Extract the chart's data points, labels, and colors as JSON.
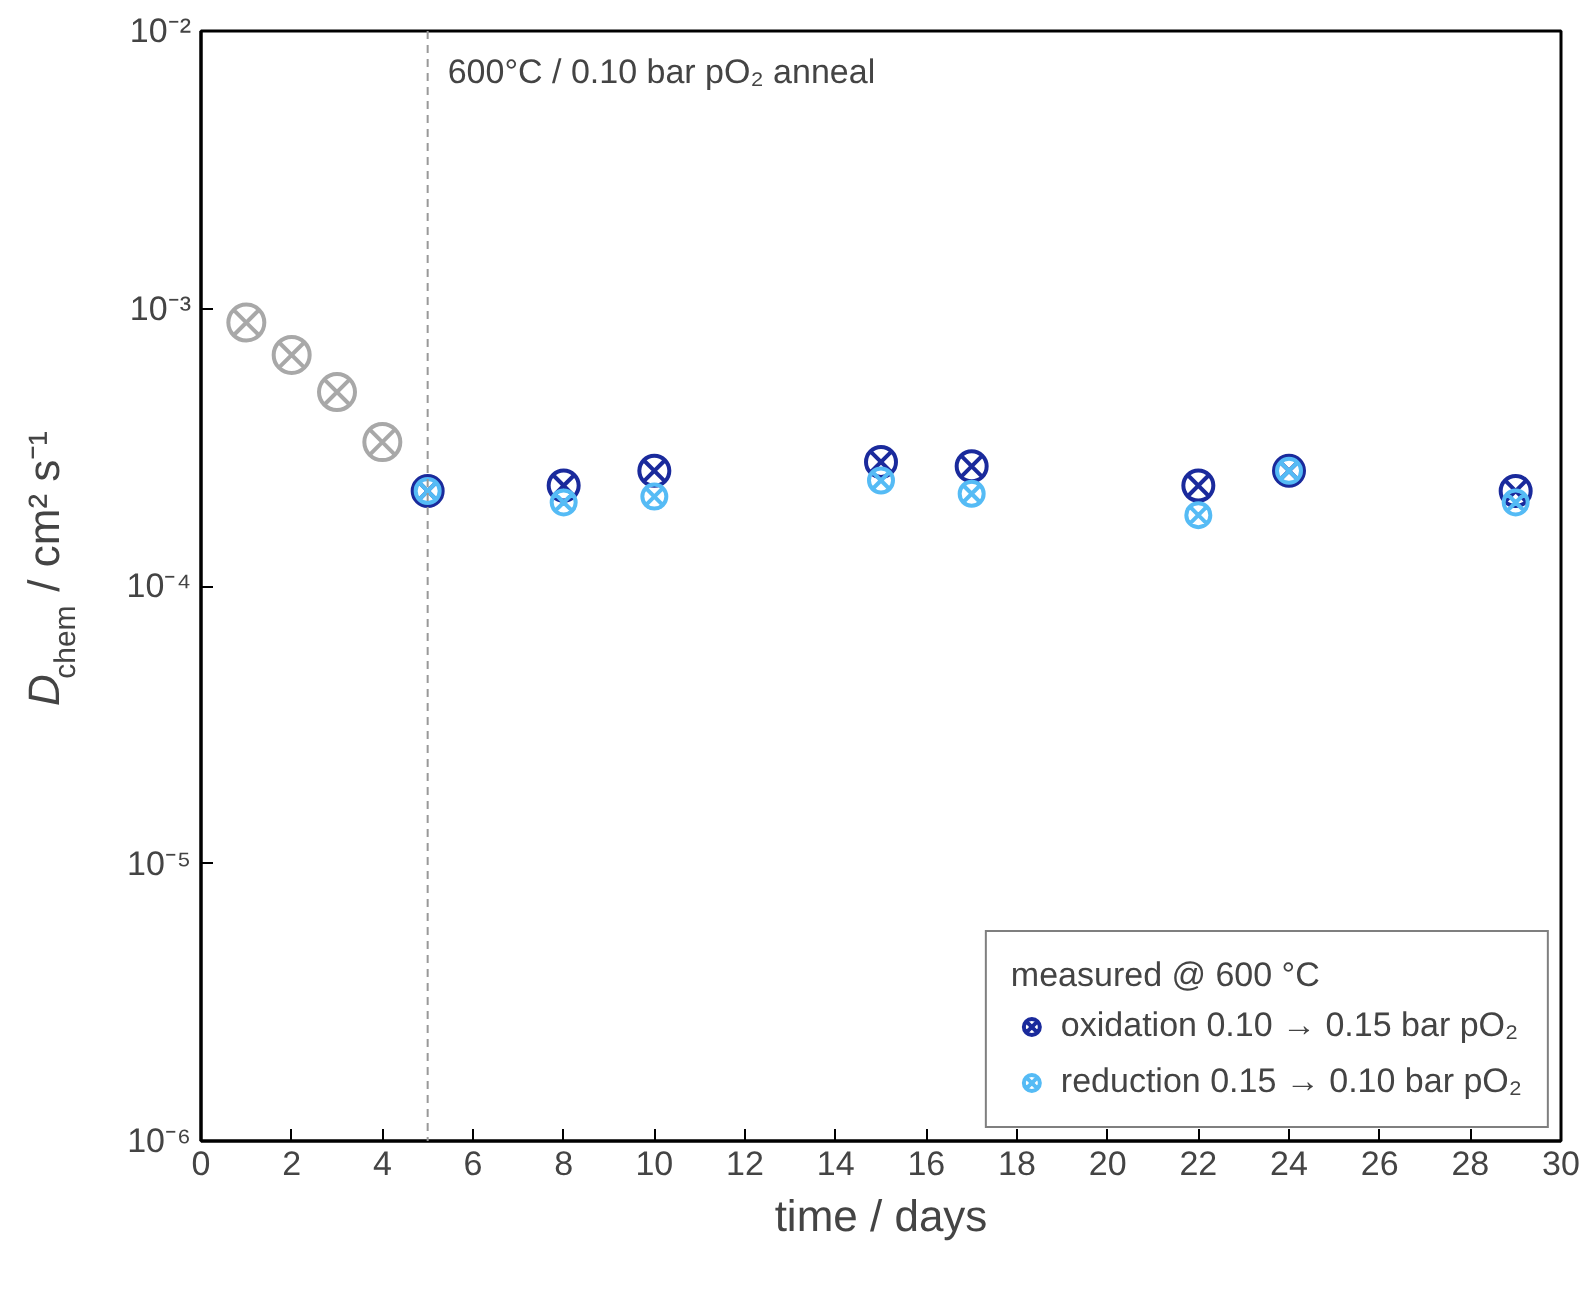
{
  "chart_data": {
    "type": "scatter",
    "xlabel": "time / days",
    "ylabel": "D$_{chem}$ / cm² s⁻¹",
    "series": [
      {
        "color": "#a8a8a8",
        "x": [
          1,
          2,
          3,
          4
        ],
        "values": [
          0.00089,
          0.00068,
          0.0005,
          0.00033
        ]
      },
      {
        "name": "oxidation 0.10 → 0.15 bar pO₂",
        "color": "#1a2a9c",
        "x": [
          5,
          8,
          10,
          15,
          17,
          22,
          24,
          29
        ],
        "values": [
          0.00022,
          0.00023,
          0.00026,
          0.00028,
          0.00027,
          0.00023,
          0.00026,
          0.00022
        ]
      },
      {
        "name": "reduction 0.15 → 0.10 bar pO₂",
        "color": "#55bbf5",
        "x": [
          5,
          8,
          10,
          15,
          17,
          22,
          24,
          29
        ],
        "values": [
          0.00022,
          0.0002,
          0.00021,
          0.00024,
          0.000215,
          0.00018,
          0.00026,
          0.0002
        ]
      }
    ],
    "legend_title": "measured @ 600 °C",
    "legend": "bottom right",
    "marker": "cross",
    "log": "y",
    "grid": false,
    "xlim": [
      0,
      30
    ],
    "xticks": [
      0,
      2,
      4,
      6,
      8,
      10,
      12,
      14,
      16,
      18,
      20,
      22,
      24,
      26,
      28,
      30
    ],
    "ylim": [
      1e-06,
      0.01
    ],
    "yticks": [
      {
        "value": 1e-06,
        "label": "10⁻⁶"
      },
      {
        "value": 1e-05,
        "label": "10⁻⁵"
      },
      {
        "value": 0.0001,
        "label": "10⁻⁴"
      },
      {
        "value": 0.001,
        "label": "10⁻³"
      },
      {
        "value": 0.01,
        "label": "10⁻²"
      }
    ],
    "ref_lines": [
      {
        "axis": "x",
        "value": 5,
        "label": "600°C / 0.10 bar pO₂ anneal",
        "color": "#999999",
        "line_style": "dashed"
      }
    ]
  }
}
